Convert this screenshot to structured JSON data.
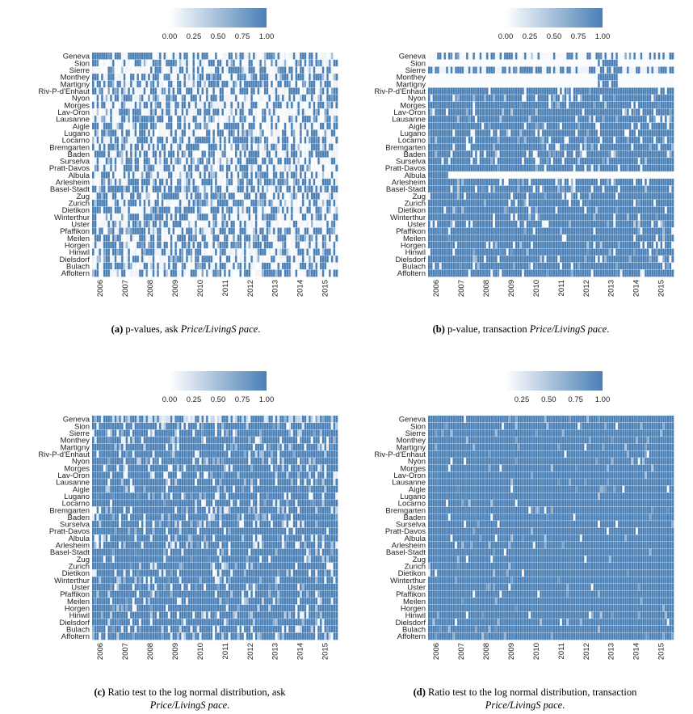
{
  "chart_data": [
    {
      "id": "a",
      "type": "heatmap",
      "caption_label": "(a)",
      "caption_text": "p-values, ask",
      "caption_var": "Price/LivingS pace",
      "caption_end": ".",
      "colorbar_ticks": [
        "0.00",
        "0.25",
        "0.50",
        "0.75",
        "1.00"
      ],
      "color_range": [
        0,
        1
      ],
      "rows": [
        "Geneva",
        "Sion",
        "Sierre",
        "Monthey",
        "Martigny",
        "Riv-P-d'Enhaut",
        "Nyon",
        "Morges",
        "Lav-Oron",
        "Lausanne",
        "Aigle",
        "Lugano",
        "Locarno",
        "Bremgarten",
        "Baden",
        "Surselva",
        "Pratt-Davos",
        "Albula",
        "Arlesheim",
        "Basel-Stadt",
        "Zug",
        "Zurich",
        "Dietikon",
        "Winterthur",
        "Uster",
        "Pfaffikon",
        "Meilen",
        "Horgen",
        "Hinwil",
        "Dielsdorf",
        "Bulach",
        "Affoltern"
      ],
      "years": [
        "2006",
        "2007",
        "2008",
        "2009",
        "2010",
        "2011",
        "2012",
        "2013",
        "2014",
        "2015"
      ],
      "style": "sparse"
    },
    {
      "id": "b",
      "type": "heatmap",
      "caption_label": "(b)",
      "caption_text": "p-value, transaction",
      "caption_var": "Price/LivingS pace",
      "caption_end": ".",
      "colorbar_ticks": [
        "0.00",
        "0.25",
        "0.50",
        "0.75",
        "1.00"
      ],
      "color_range": [
        0,
        1
      ],
      "rows": [
        "Geneva",
        "Sion",
        "Sierre",
        "Monthey",
        "Martigny",
        "Riv-P-d'Enhaut",
        "Nyon",
        "Morges",
        "Lav-Oron",
        "Lausanne",
        "Aigle",
        "Lugano",
        "Locarno",
        "Bremgarten",
        "Baden",
        "Surselva",
        "Pratt-Davos",
        "Albula",
        "Arlesheim",
        "Basel-Stadt",
        "Zug",
        "Zurich",
        "Dietikon",
        "Winterthur",
        "Uster",
        "Pfaffikon",
        "Meilen",
        "Horgen",
        "Hinwil",
        "Dielsdorf",
        "Bulach",
        "Affoltern"
      ],
      "years": [
        "2006",
        "2007",
        "2008",
        "2009",
        "2010",
        "2011",
        "2012",
        "2013",
        "2014",
        "2015"
      ],
      "style": "dense_b"
    },
    {
      "id": "c",
      "type": "heatmap",
      "caption_label": "(c)",
      "caption_text": "Ratio test to the log normal distribution, ask",
      "caption_var": "Price/LivingS pace",
      "caption_end": ".",
      "colorbar_ticks": [
        "0.00",
        "0.25",
        "0.50",
        "0.75",
        "1.00"
      ],
      "color_range": [
        0,
        1
      ],
      "rows": [
        "Geneva",
        "Sion",
        "Sierre",
        "Monthey",
        "Martigny",
        "Riv-P-d'Enhaut",
        "Nyon",
        "Morges",
        "Lav-Oron",
        "Lausanne",
        "Aigle",
        "Lugano",
        "Locarno",
        "Bremgarten",
        "Baden",
        "Surselva",
        "Pratt-Davos",
        "Albula",
        "Arlesheim",
        "Basel-Stadt",
        "Zug",
        "Zurich",
        "Dietikon",
        "Winterthur",
        "Uster",
        "Pfaffikon",
        "Meilen",
        "Horgen",
        "Hinwil",
        "Dielsdorf",
        "Bulach",
        "Affoltern"
      ],
      "years": [
        "2006",
        "2007",
        "2008",
        "2009",
        "2010",
        "2011",
        "2012",
        "2013",
        "2014",
        "2015"
      ],
      "style": "dense_c"
    },
    {
      "id": "d",
      "type": "heatmap",
      "caption_label": "(d)",
      "caption_text": "Ratio test to the log normal distribution, transaction",
      "caption_var": "Price/LivingS pace",
      "caption_end": ".",
      "colorbar_ticks": [
        "0.25",
        "0.50",
        "0.75",
        "1.00"
      ],
      "color_range": [
        0.1,
        1
      ],
      "rows": [
        "Geneva",
        "Sion",
        "Sierre",
        "Monthey",
        "Martigny",
        "Riv-P-d'Enhaut",
        "Nyon",
        "Morges",
        "Lav-Oron",
        "Lausanne",
        "Aigle",
        "Lugano",
        "Locarno",
        "Bremgarten",
        "Baden",
        "Surselva",
        "Pratt-Davos",
        "Albula",
        "Arlesheim",
        "Basel-Stadt",
        "Zug",
        "Zurich",
        "Dietikon",
        "Winterthur",
        "Uster",
        "Pfaffikon",
        "Meilen",
        "Horgen",
        "Hinwil",
        "Dielsdorf",
        "Bulach",
        "Affoltern"
      ],
      "years": [
        "2006",
        "2007",
        "2008",
        "2009",
        "2010",
        "2011",
        "2012",
        "2013",
        "2014",
        "2015"
      ],
      "style": "dense_d"
    }
  ],
  "colors": {
    "high": "#4a7fb5",
    "low": "#ffffff"
  }
}
